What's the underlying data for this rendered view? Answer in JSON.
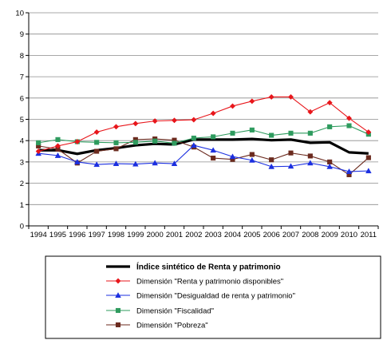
{
  "chart_data": {
    "type": "line",
    "title": "",
    "xlabel": "",
    "ylabel": "",
    "x": [
      "1994",
      "1995",
      "1996",
      "1997",
      "1998",
      "1999",
      "2000",
      "2001",
      "2002",
      "2003",
      "2004",
      "2005",
      "2006",
      "2007",
      "2008",
      "2009",
      "2010",
      "2011"
    ],
    "ylim": [
      0,
      10
    ],
    "yticks": [
      "0",
      "1",
      "2",
      "3",
      "4",
      "5",
      "6",
      "7",
      "8",
      "9",
      "10"
    ],
    "grid": true,
    "legend_placement": "bottom",
    "series": [
      {
        "name": "Índice sintético de Renta y patrimonio",
        "color": "#000000",
        "marker": "none",
        "values": [
          3.55,
          3.55,
          3.38,
          3.55,
          3.65,
          3.78,
          3.85,
          3.82,
          4.05,
          4.05,
          4.05,
          4.08,
          4.02,
          4.05,
          3.9,
          3.92,
          3.45,
          3.4
        ]
      },
      {
        "name": "Dimensión \"Renta y patrimonio disponibles\"",
        "color": "#e8161b",
        "marker": "diamond",
        "values": [
          3.5,
          3.75,
          3.95,
          4.4,
          4.65,
          4.8,
          4.92,
          4.95,
          4.98,
          5.28,
          5.62,
          5.85,
          6.05,
          6.05,
          5.35,
          5.78,
          5.05,
          4.4
        ]
      },
      {
        "name": "Dimensión \"Desigualdad de renta y patrimonio\"",
        "color": "#1b2fe0",
        "marker": "triangle",
        "values": [
          3.4,
          3.3,
          3.0,
          2.88,
          2.92,
          2.9,
          2.95,
          2.92,
          3.78,
          3.55,
          3.25,
          3.08,
          2.78,
          2.8,
          2.95,
          2.78,
          2.55,
          2.58
        ]
      },
      {
        "name": "Dimensión \"Fiscalidad\"",
        "color": "#2e9b5e",
        "marker": "square",
        "values": [
          3.9,
          4.05,
          3.95,
          3.92,
          3.9,
          3.92,
          3.98,
          3.88,
          4.12,
          4.18,
          4.35,
          4.5,
          4.25,
          4.35,
          4.35,
          4.65,
          4.7,
          4.3
        ]
      },
      {
        "name": "Dimensión \"Pobreza\"",
        "color": "#6b2a1e",
        "marker": "square",
        "values": [
          3.75,
          3.6,
          2.95,
          3.5,
          3.62,
          4.05,
          4.08,
          4.02,
          3.7,
          3.18,
          3.12,
          3.35,
          3.1,
          3.42,
          3.28,
          3.0,
          2.4,
          3.2
        ]
      }
    ]
  }
}
